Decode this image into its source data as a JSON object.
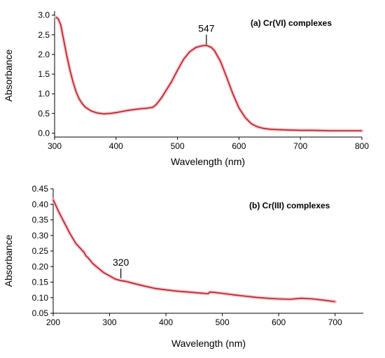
{
  "chart_data": [
    {
      "type": "line",
      "title": "(a) Cr(VI) complexes",
      "xlabel": "Wavelength (nm)",
      "ylabel": "Absorbance",
      "xlim": [
        300,
        800
      ],
      "ylim": [
        -0.1,
        3.1
      ],
      "xticks": [
        300,
        400,
        500,
        600,
        700,
        800
      ],
      "yticks": [
        0.0,
        0.5,
        1.0,
        1.5,
        2.0,
        2.5,
        3.0
      ],
      "ytick_labels": [
        "0.0",
        "0.5",
        "1.0",
        "1.5",
        "2.0",
        "2.5",
        "3.0"
      ],
      "grid": false,
      "line_color": "#b22222",
      "glow_color": "#f4b6c2",
      "annotations": [
        {
          "x": 547,
          "y": 2.22,
          "text": "547"
        }
      ],
      "series": [
        {
          "x": [
            302,
            306,
            310,
            315,
            320,
            325,
            330,
            335,
            340,
            345,
            350,
            360,
            370,
            380,
            390,
            400,
            410,
            420,
            430,
            440,
            450,
            460,
            465,
            470,
            475,
            480,
            490,
            500,
            510,
            520,
            530,
            540,
            547,
            555,
            560,
            570,
            580,
            590,
            600,
            610,
            620,
            630,
            640,
            650,
            660,
            680,
            700,
            720,
            750,
            780,
            800
          ],
          "y": [
            2.95,
            2.9,
            2.75,
            2.35,
            1.95,
            1.6,
            1.3,
            1.05,
            0.87,
            0.75,
            0.66,
            0.56,
            0.51,
            0.49,
            0.5,
            0.52,
            0.55,
            0.58,
            0.6,
            0.62,
            0.63,
            0.66,
            0.72,
            0.82,
            0.92,
            1.05,
            1.3,
            1.6,
            1.88,
            2.07,
            2.18,
            2.22,
            2.23,
            2.18,
            2.1,
            1.82,
            1.42,
            1.0,
            0.64,
            0.4,
            0.24,
            0.16,
            0.12,
            0.1,
            0.09,
            0.08,
            0.07,
            0.07,
            0.06,
            0.06,
            0.06
          ]
        }
      ]
    },
    {
      "type": "line",
      "title": "(b) Cr(III) complexes",
      "xlabel": "Wavelength (nm)",
      "ylabel": "Absorbance",
      "xlim": [
        200,
        750
      ],
      "ylim": [
        0.05,
        0.45
      ],
      "xticks": [
        200,
        300,
        400,
        500,
        600,
        700
      ],
      "yticks": [
        0.05,
        0.1,
        0.15,
        0.2,
        0.25,
        0.3,
        0.35,
        0.4,
        0.45
      ],
      "ytick_labels": [
        "0.05",
        "0.10",
        "0.15",
        "0.20",
        "0.25",
        "0.30",
        "0.35",
        "0.40",
        "0.45"
      ],
      "grid": false,
      "line_color": "#b22222",
      "glow_color": "#f4b6c2",
      "annotations": [
        {
          "x": 320,
          "y": 0.158,
          "text": "320"
        }
      ],
      "series": [
        {
          "x": [
            200,
            210,
            220,
            230,
            240,
            250,
            255,
            258,
            262,
            270,
            280,
            290,
            300,
            310,
            320,
            330,
            340,
            360,
            380,
            400,
            420,
            440,
            460,
            475,
            478,
            485,
            500,
            520,
            540,
            560,
            580,
            600,
            620,
            640,
            660,
            680,
            700
          ],
          "y": [
            0.415,
            0.375,
            0.34,
            0.305,
            0.275,
            0.255,
            0.245,
            0.235,
            0.228,
            0.21,
            0.195,
            0.18,
            0.17,
            0.16,
            0.155,
            0.152,
            0.147,
            0.138,
            0.13,
            0.125,
            0.121,
            0.118,
            0.115,
            0.113,
            0.118,
            0.117,
            0.114,
            0.109,
            0.105,
            0.101,
            0.098,
            0.096,
            0.095,
            0.098,
            0.096,
            0.092,
            0.087
          ]
        }
      ]
    }
  ]
}
